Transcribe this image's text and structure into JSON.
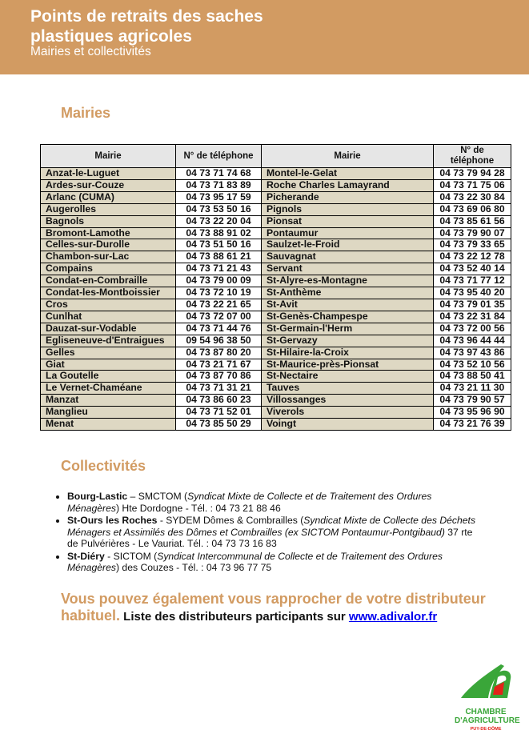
{
  "header": {
    "title_line1": "Points de retraits des saches",
    "title_line2": "plastiques agricoles",
    "subtitle": "Mairies et collectivités",
    "color": "#d29b62"
  },
  "mairies": {
    "heading": "Mairies",
    "columns": [
      "Mairie",
      "N° de téléphone",
      "Mairie",
      "N° de téléphone"
    ],
    "left": [
      [
        "Anzat-le-Luguet",
        "04 73 71 74 68"
      ],
      [
        "Ardes-sur-Couze",
        "04 73 71 83 89"
      ],
      [
        "Arlanc (CUMA)",
        "04 73 95 17 59"
      ],
      [
        "Augerolles",
        "04 73 53 50 16"
      ],
      [
        "Bagnols",
        "04 73 22 20 04"
      ],
      [
        "Bromont-Lamothe",
        "04 73 88 91 02"
      ],
      [
        "Celles-sur-Durolle",
        "04 73 51 50 16"
      ],
      [
        "Chambon-sur-Lac",
        "04 73 88 61 21"
      ],
      [
        "Compains",
        "04 73 71 21 43"
      ],
      [
        "Condat-en-Combraille",
        "04 73 79 00 09"
      ],
      [
        "Condat-les-Montboissier",
        "04 73 72 10 19"
      ],
      [
        "Cros",
        "04 73 22 21 65"
      ],
      [
        "Cunlhat",
        "04 73 72 07 00"
      ],
      [
        "Dauzat-sur-Vodable",
        "04 73 71 44 76"
      ],
      [
        "Egliseneuve-d'Entraigues",
        "09 54 96 38 50"
      ],
      [
        "Gelles",
        "04 73 87 80 20"
      ],
      [
        "Giat",
        "04 73 21 71 67"
      ],
      [
        "La Goutelle",
        "04 73 87 70 86"
      ],
      [
        "Le Vernet-Chaméane",
        "04 73 71 31 21"
      ],
      [
        "Manzat",
        "04 73 86 60 23"
      ],
      [
        "Manglieu",
        "04 73 71 52 01"
      ],
      [
        "Menat",
        "04 73 85 50 29"
      ]
    ],
    "right": [
      [
        "Montel-le-Gelat",
        "04 73 79 94 28"
      ],
      [
        "Roche Charles Lamayrand",
        "04 73 71 75 06"
      ],
      [
        "Picherande",
        "04 73 22 30 84"
      ],
      [
        "Pignols",
        "04 73 69 06 80"
      ],
      [
        "Pionsat",
        "04 73 85 61 56"
      ],
      [
        "Pontaumur",
        "04 73 79 90 07"
      ],
      [
        "Saulzet-le-Froid",
        "04 73 79 33 65"
      ],
      [
        "Sauvagnat",
        "04 73 22 12 78"
      ],
      [
        "Servant",
        "04 73 52 40 14"
      ],
      [
        "St-Alyre-es-Montagne",
        "04 73 71 77 12"
      ],
      [
        "St-Anthème",
        "04 73 95 40 20"
      ],
      [
        "St-Avit",
        "04 73 79 01 35"
      ],
      [
        "St-Genès-Champespe",
        "04 73 22 31 84"
      ],
      [
        "St-Germain-l'Herm",
        "04 73 72 00 56"
      ],
      [
        "St-Gervazy",
        "04 73 96 44 44"
      ],
      [
        "St-Hilaire-la-Croix",
        "04 73 97 43 86"
      ],
      [
        "St-Maurice-près-Pionsat",
        "04 73 52 10 56"
      ],
      [
        "St-Nectaire",
        "04 73 88 50 41"
      ],
      [
        "Tauves",
        "04 73 21 11 30"
      ],
      [
        "Villossanges",
        "04 73 79 90 57"
      ],
      [
        "Viverols",
        "04 73 95 96 90"
      ],
      [
        "Voingt",
        "04 73 21 76 39"
      ]
    ]
  },
  "collectivites": {
    "heading": "Collectivités",
    "items": [
      {
        "place": "Bourg-Lastic",
        "sep": " – SMCTOM (",
        "italic": "Syndicat Mixte de Collecte et de Traitement des Ordures Ménagères",
        "rest": ") Hte Dordogne - Tél. : 04 73 21 88 46"
      },
      {
        "place": "St-Ours les Roches",
        "sep": " - SYDEM Dômes & Combrailles (",
        "italic": "Syndicat Mixte de Collecte des Déchets Ménagers et Assimilés des Dômes et Combrailles (ex SICTOM Pontaumur-Pontgibaud)",
        "rest": " 37 rte de Pulvérières - Le Vauriat. Tél. : 04 73 73 16 83"
      },
      {
        "place": "St-Diéry",
        "sep": " - SICTOM (",
        "italic": "Syndicat Intercommunal de Collecte et de Traitement des Ordures Ménagères",
        "rest": ") des Couzes - Tél. : 04 73 96 77 75"
      }
    ]
  },
  "closing": {
    "highlight": "Vous pouvez également vous rapprocher de votre distributeur habituel.",
    "text": " Liste des distributeurs participants sur ",
    "link": "www.adivalor.fr"
  },
  "logo": {
    "line1": "CHAMBRE",
    "line2": "D'AGRICULTURE",
    "line3": "PUY-DE-DÔME",
    "green": "#3aa639",
    "red": "#e2231a"
  }
}
